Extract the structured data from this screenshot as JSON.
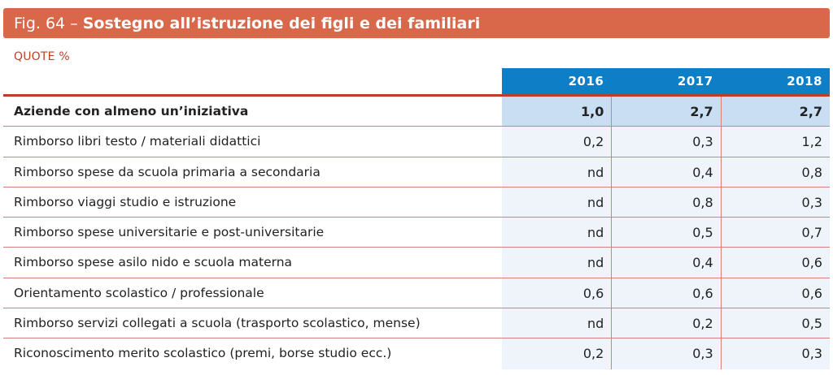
{
  "figure": {
    "number": "Fig. 64",
    "separator": "–",
    "title": "Sostegno all’istruzione dei figli e dei familiari",
    "subtitle": "QUOTE %"
  },
  "colors": {
    "header_bg": "#d9684a",
    "subtitle": "#b8412a",
    "year_band": "#0e7fc6",
    "rule": "#c03b2b",
    "highlight_cell": "#c9def2",
    "cell_bg": "#eef4fa"
  },
  "chart_data": {
    "type": "table",
    "title": "Sostegno all’istruzione dei figli e dei familiari",
    "subtitle": "QUOTE %",
    "columns": [
      "2016",
      "2017",
      "2018"
    ],
    "rows": [
      {
        "label": "Aziende con almeno un’iniziativa",
        "values": [
          "1,0",
          "2,7",
          "2,7"
        ],
        "highlight": true
      },
      {
        "label": "Rimborso libri testo / materiali didattici",
        "values": [
          "0,2",
          "0,3",
          "1,2"
        ]
      },
      {
        "label": "Rimborso spese da scuola primaria a secondaria",
        "values": [
          "nd",
          "0,4",
          "0,8"
        ]
      },
      {
        "label": "Rimborso viaggi studio  e istruzione",
        "values": [
          "nd",
          "0,8",
          "0,3"
        ]
      },
      {
        "label": "Rimborso spese universitarie e post-universitarie",
        "values": [
          "nd",
          "0,5",
          "0,7"
        ]
      },
      {
        "label": "Rimborso spese asilo nido e scuola materna",
        "values": [
          "nd",
          "0,4",
          "0,6"
        ]
      },
      {
        "label": "Orientamento scolastico / professionale",
        "values": [
          "0,6",
          "0,6",
          "0,6"
        ]
      },
      {
        "label": "Rimborso servizi collegati a scuola (trasporto scolastico, mense)",
        "values": [
          "nd",
          "0,2",
          "0,5"
        ]
      },
      {
        "label": "Riconoscimento merito scolastico (premi, borse studio ecc.)",
        "values": [
          "0,2",
          "0,3",
          "0,3"
        ]
      }
    ]
  }
}
